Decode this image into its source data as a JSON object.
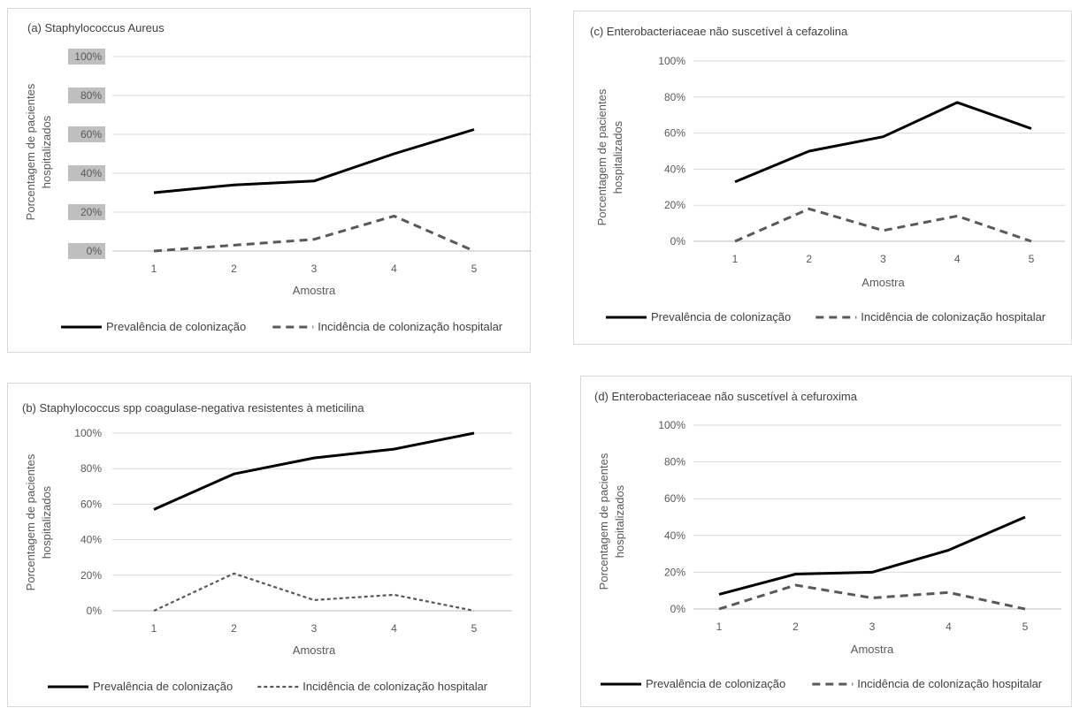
{
  "chart_data": [
    {
      "id": "a",
      "type": "line",
      "title": "(a) Staphylococcus Aureus",
      "xlabel": "Amostra",
      "ylabel": "Porcentagem de pacientes hospitalizados",
      "ylabel_lines": [
        "Porcentagem de pacientes",
        "hospitalizados"
      ],
      "categories": [
        "1",
        "2",
        "3",
        "4",
        "5"
      ],
      "yticks": [
        "0%",
        "20%",
        "40%",
        "60%",
        "80%",
        "100%"
      ],
      "ylim": [
        0,
        100
      ],
      "grid": true,
      "legend_position": "bottom",
      "highlighted_ticks": true,
      "series": [
        {
          "name": "Prevalência de colonização",
          "values": [
            30,
            34,
            36,
            50,
            62.5
          ],
          "color": "#000000",
          "style": "solid"
        },
        {
          "name": "Incidência de colonização hospitalar",
          "values": [
            0,
            3,
            6,
            18,
            0
          ],
          "color": "#595959",
          "style": "dashed"
        }
      ]
    },
    {
      "id": "b",
      "type": "line",
      "title": "(b) Staphylococcus spp coagulase-negativa resistentes à meticilina",
      "xlabel": "Amostra",
      "ylabel": "Porcentagem de pacientes hospitalizados",
      "ylabel_lines": [
        "Porcentagem de pacientes",
        "hospitalizados"
      ],
      "categories": [
        "1",
        "2",
        "3",
        "4",
        "5"
      ],
      "yticks": [
        "0%",
        "20%",
        "40%",
        "60%",
        "80%",
        "100%"
      ],
      "ylim": [
        0,
        100
      ],
      "grid": true,
      "legend_position": "bottom",
      "highlighted_ticks": false,
      "series": [
        {
          "name": "Prevalência de colonização",
          "values": [
            57,
            77,
            86,
            91,
            100
          ],
          "color": "#000000",
          "style": "solid"
        },
        {
          "name": "Incidência de colonização hospitalar",
          "values": [
            0,
            21,
            6,
            9,
            0
          ],
          "color": "#595959",
          "style": "dotted"
        }
      ]
    },
    {
      "id": "c",
      "type": "line",
      "title": "(c) Enterobacteriaceae não suscetível à cefazolina",
      "xlabel": "Amostra",
      "ylabel": "Porcentagem de pacientes hospitalizados",
      "ylabel_lines": [
        "Porcentagem de pacientes",
        "hospitalizados"
      ],
      "categories": [
        "1",
        "2",
        "3",
        "4",
        "5"
      ],
      "yticks": [
        "0%",
        "20%",
        "40%",
        "60%",
        "80%",
        "100%"
      ],
      "ylim": [
        0,
        100
      ],
      "grid": true,
      "legend_position": "bottom",
      "highlighted_ticks": false,
      "series": [
        {
          "name": "Prevalência de colonização",
          "values": [
            33,
            50,
            58,
            77,
            62.5
          ],
          "color": "#000000",
          "style": "solid"
        },
        {
          "name": "Incidência de colonização hospitalar",
          "values": [
            0,
            18,
            6,
            14,
            0
          ],
          "color": "#595959",
          "style": "dashed"
        }
      ]
    },
    {
      "id": "d",
      "type": "line",
      "title": "(d) Enterobacteriaceae não suscetível à cefuroxima",
      "xlabel": "Amostra",
      "ylabel": "Porcentagem de pacientes hospitalizados",
      "ylabel_lines": [
        "Porcentagem de pacientes",
        "hospitalizados"
      ],
      "categories": [
        "1",
        "2",
        "3",
        "4",
        "5"
      ],
      "yticks": [
        "0%",
        "20%",
        "40%",
        "60%",
        "80%",
        "100%"
      ],
      "ylim": [
        0,
        100
      ],
      "grid": true,
      "legend_position": "bottom",
      "highlighted_ticks": false,
      "series": [
        {
          "name": "Prevalência de colonização",
          "values": [
            8,
            19,
            20,
            32,
            50
          ],
          "color": "#000000",
          "style": "solid"
        },
        {
          "name": "Incidência de colonização hospitalar",
          "values": [
            0,
            13,
            6,
            9,
            0
          ],
          "color": "#595959",
          "style": "dashed"
        }
      ]
    }
  ]
}
